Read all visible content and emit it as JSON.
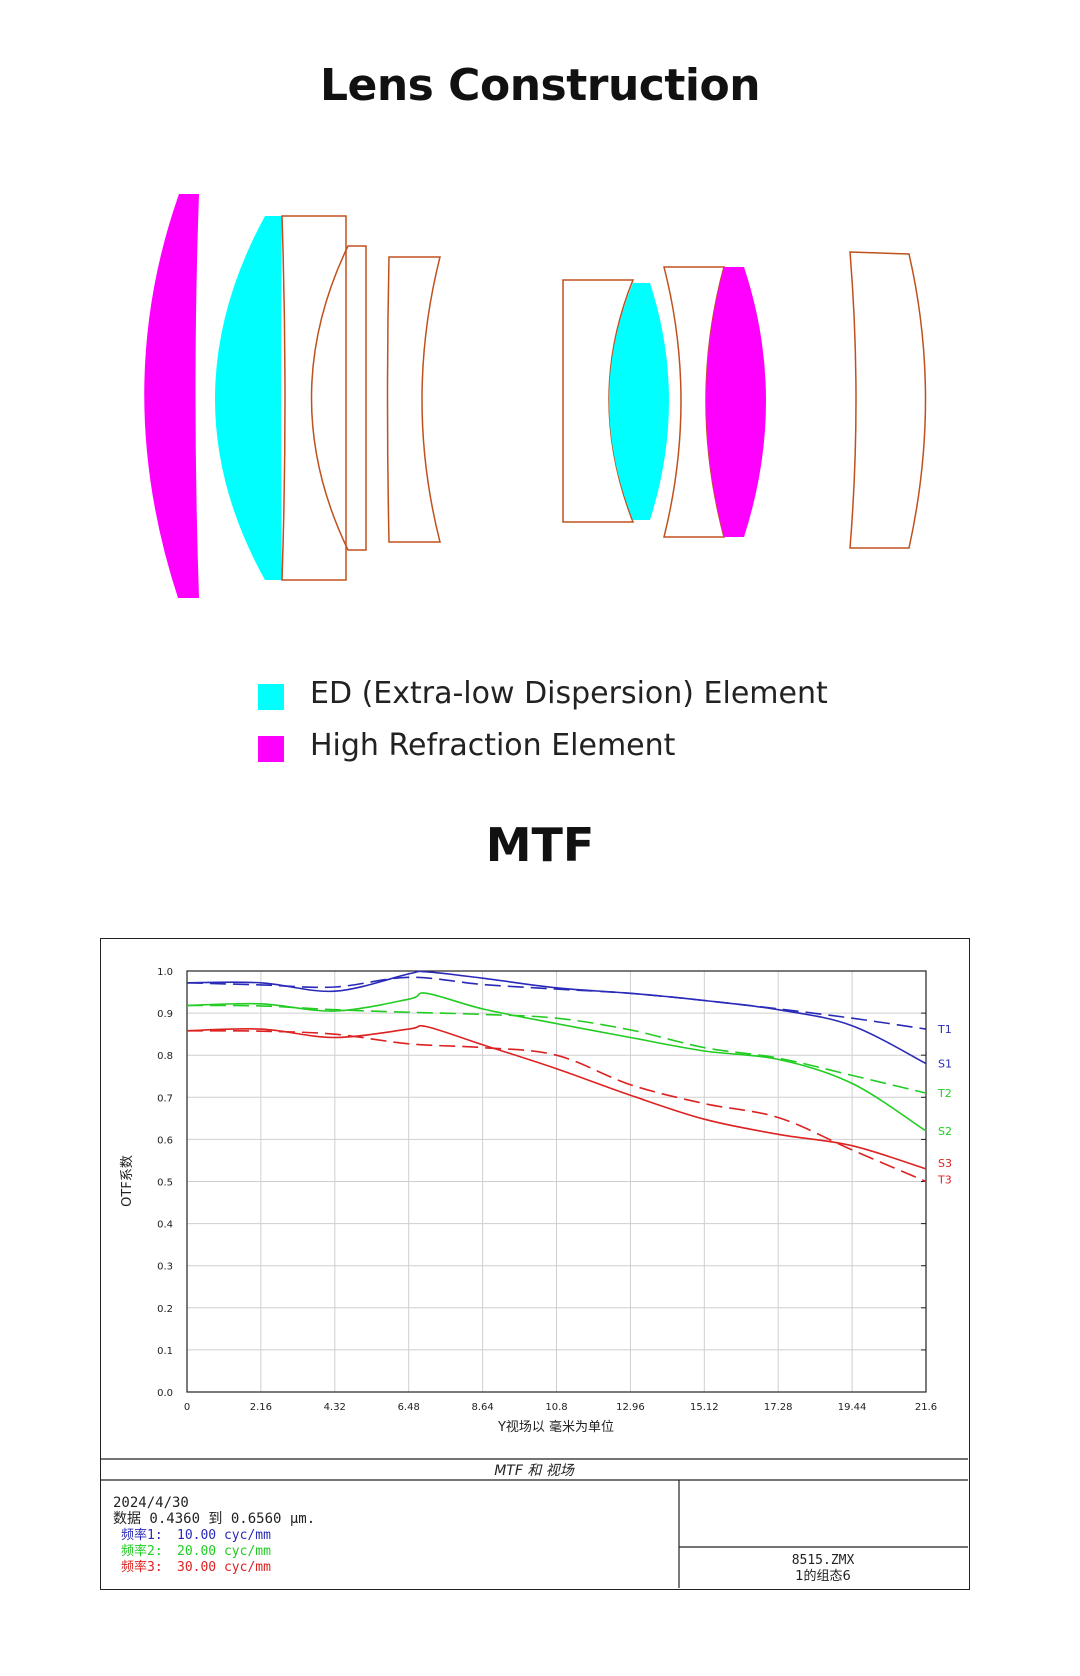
{
  "header": {
    "lens_title": "Lens Construction",
    "mtf_title": "MTF"
  },
  "legend": {
    "items": [
      {
        "label": "ED (Extra-low Dispersion) Element",
        "color": "#00ffff"
      },
      {
        "label": "High Refraction Element",
        "color": "#ff00ff"
      }
    ]
  },
  "colors": {
    "lens_outline": "#c0501e",
    "ed": "#00ffff",
    "high_refraction": "#ff00ff"
  },
  "chart_data": {
    "type": "line",
    "title": "MTF 和 视场",
    "xlabel": "Y视场以 毫米为单位",
    "ylabel": "OTF系数",
    "xlim": [
      0,
      21.6
    ],
    "ylim": [
      0,
      1.0
    ],
    "x_ticks": [
      "0",
      "2.16",
      "4.32",
      "6.48",
      "8.64",
      "10.8",
      "12.96",
      "15.12",
      "17.28",
      "19.44",
      "21.6"
    ],
    "y_ticks": [
      "0.0",
      "0.1",
      "0.2",
      "0.3",
      "0.4",
      "0.5",
      "0.6",
      "0.7",
      "0.8",
      "0.9",
      "1.0"
    ],
    "grid": true,
    "series": [
      {
        "name": "T1",
        "color": "#2a2ab8",
        "dash": true,
        "x": [
          0,
          2.16,
          4.32,
          6.48,
          8.64,
          10.8,
          12.96,
          15.12,
          17.28,
          19.44,
          21.6
        ],
        "y": [
          0.972,
          0.967,
          0.962,
          0.985,
          0.968,
          0.957,
          0.947,
          0.93,
          0.91,
          0.888,
          0.862
        ]
      },
      {
        "name": "S1",
        "color": "#2a2ab8",
        "dash": false,
        "x": [
          0,
          2.16,
          4.32,
          6.48,
          7.0,
          8.64,
          10.8,
          12.96,
          15.12,
          17.28,
          19.44,
          21.6
        ],
        "y": [
          0.972,
          0.972,
          0.952,
          0.993,
          0.998,
          0.983,
          0.96,
          0.947,
          0.93,
          0.908,
          0.87,
          0.78
        ]
      },
      {
        "name": "T2",
        "color": "#22cc22",
        "dash": true,
        "x": [
          0,
          2.16,
          4.32,
          6.48,
          8.64,
          10.8,
          12.96,
          15.12,
          17.28,
          19.44,
          21.6
        ],
        "y": [
          0.918,
          0.917,
          0.908,
          0.902,
          0.897,
          0.888,
          0.86,
          0.818,
          0.793,
          0.752,
          0.71
        ]
      },
      {
        "name": "S2",
        "color": "#22cc22",
        "dash": false,
        "x": [
          0,
          2.16,
          4.32,
          6.48,
          7.0,
          8.64,
          10.8,
          12.96,
          15.12,
          17.28,
          19.44,
          21.6
        ],
        "y": [
          0.918,
          0.922,
          0.905,
          0.933,
          0.947,
          0.91,
          0.875,
          0.842,
          0.81,
          0.79,
          0.733,
          0.62
        ]
      },
      {
        "name": "T3",
        "color": "#dd2222",
        "dash": true,
        "x": [
          0,
          2.16,
          4.32,
          6.48,
          8.64,
          10.8,
          12.96,
          15.12,
          17.28,
          19.44,
          21.6
        ],
        "y": [
          0.858,
          0.857,
          0.85,
          0.827,
          0.818,
          0.8,
          0.73,
          0.685,
          0.652,
          0.575,
          0.5
        ]
      },
      {
        "name": "S3",
        "color": "#dd2222",
        "dash": false,
        "x": [
          0,
          2.16,
          4.32,
          6.48,
          7.0,
          8.64,
          10.8,
          12.96,
          15.12,
          17.28,
          19.44,
          21.6
        ],
        "y": [
          0.858,
          0.862,
          0.842,
          0.862,
          0.868,
          0.825,
          0.768,
          0.705,
          0.648,
          0.612,
          0.585,
          0.53
        ]
      }
    ]
  },
  "info": {
    "date": "2024/4/30",
    "data_line": "数据 0.4360 到 0.6560 μm.",
    "frequencies": [
      {
        "label": "频率1:",
        "value": "10.00 cyc/mm",
        "color": "#2a2ab8"
      },
      {
        "label": "频率2:",
        "value": "20.00 cyc/mm",
        "color": "#22cc22"
      },
      {
        "label": "频率3:",
        "value": "30.00 cyc/mm",
        "color": "#dd2222"
      }
    ],
    "file_name": "8515.ZMX",
    "config": "1的组态6"
  }
}
